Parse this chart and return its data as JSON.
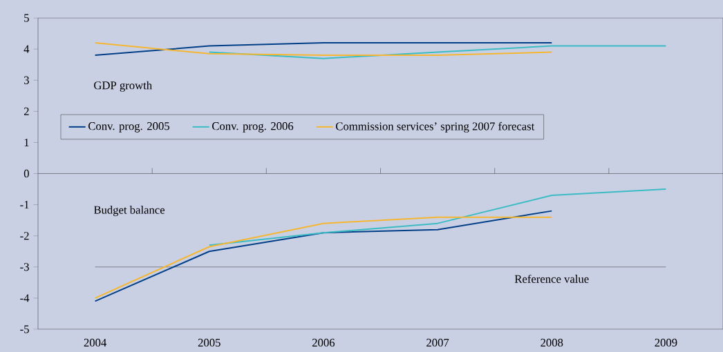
{
  "chart_data": {
    "type": "line",
    "categories": [
      "2004",
      "2005",
      "2006",
      "2007",
      "2008",
      "2009"
    ],
    "series": [
      {
        "name": "Conv. prog. 2005",
        "color": "#003f87",
        "values": [
          3.8,
          4.1,
          4.2,
          4.2,
          4.2,
          null
        ]
      },
      {
        "name": "Conv. prog. 2006",
        "color": "#3bbcc4",
        "values": [
          null,
          3.9,
          3.7,
          3.9,
          4.1,
          4.1
        ]
      },
      {
        "name": "Commission services’ spring 2007 forecast",
        "color": "#f5b731",
        "values": [
          4.2,
          3.85,
          3.8,
          3.8,
          3.9,
          null
        ]
      },
      {
        "color": "#003f87",
        "values": [
          -4.1,
          -2.5,
          -1.9,
          -1.8,
          -1.2,
          null
        ]
      },
      {
        "color": "#3bbcc4",
        "values": [
          null,
          -2.3,
          -1.9,
          -1.6,
          -0.7,
          -0.5
        ]
      },
      {
        "color": "#f5b731",
        "values": [
          -4.0,
          -2.35,
          -1.6,
          -1.4,
          -1.4,
          null
        ]
      }
    ],
    "ylim": [
      -5,
      5
    ],
    "yticks": [
      -5,
      -4,
      -3,
      -2,
      -1,
      0,
      1,
      2,
      3,
      4,
      5
    ],
    "ref_lines": [
      {
        "axis": "y",
        "value": 0,
        "color": "#3a3a3a"
      },
      {
        "axis": "y",
        "value": -3,
        "label": "Reference value",
        "color": "#3a3a3a"
      }
    ],
    "annotations": [
      "GDP growth",
      "Budget balance"
    ],
    "legend": "left",
    "marker": "none",
    "line_style": "solid",
    "grid": false
  }
}
